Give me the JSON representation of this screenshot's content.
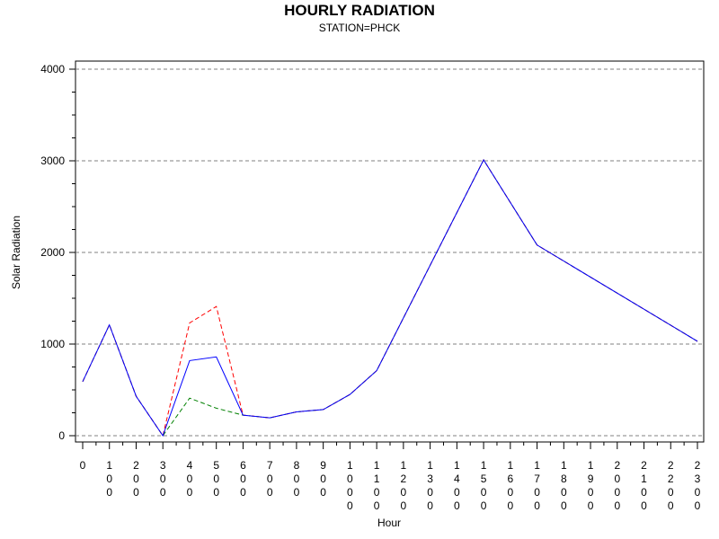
{
  "chart_data": {
    "type": "line",
    "title": "HOURLY RADIATION",
    "subtitle": "STATION=PHCK",
    "xlabel": "Hour",
    "ylabel": "Solar Radiation",
    "xlim": [
      0,
      2300
    ],
    "ylim": [
      0,
      4000
    ],
    "y_ticks": [
      0,
      1000,
      2000,
      3000,
      4000
    ],
    "y_tick_labels": [
      "0",
      "1000",
      "2000",
      "3000",
      "4000"
    ],
    "x_ticks": [
      0,
      100,
      200,
      300,
      400,
      500,
      600,
      700,
      800,
      900,
      1000,
      1100,
      1200,
      1300,
      1400,
      1500,
      1600,
      1700,
      1800,
      1900,
      2000,
      2100,
      2200,
      2300
    ],
    "x_tick_labels": [
      "0",
      "100",
      "200",
      "300",
      "400",
      "500",
      "600",
      "700",
      "800",
      "900",
      "1000",
      "1100",
      "1200",
      "1300",
      "1400",
      "1500",
      "1600",
      "1700",
      "1800",
      "1900",
      "2000",
      "2100",
      "2200",
      "2300"
    ],
    "grid": "horizontal dashed",
    "series": [
      {
        "color": "#0000ff",
        "dash": "solid",
        "x": [
          0,
          100,
          200,
          300,
          400,
          500,
          600,
          700,
          800,
          900,
          1000,
          1100,
          1500,
          1700,
          2300
        ],
        "y": [
          590,
          1210,
          430,
          0,
          820,
          860,
          225,
          195,
          260,
          285,
          450,
          710,
          3010,
          2080,
          1030
        ]
      },
      {
        "color": "#ff0000",
        "dash": "dashed",
        "x": [
          0,
          100,
          200,
          300,
          400,
          500,
          600,
          700,
          800,
          900,
          1000,
          1100,
          1500,
          1700,
          2300
        ],
        "y": [
          590,
          1210,
          430,
          0,
          1230,
          1410,
          225,
          195,
          260,
          285,
          450,
          710,
          3010,
          2080,
          1030
        ]
      },
      {
        "color": "#008000",
        "dash": "dashed",
        "x": [
          0,
          100,
          200,
          300,
          400,
          500,
          600,
          700,
          800,
          900,
          1000,
          1100,
          1500,
          1700,
          2300
        ],
        "y": [
          590,
          1210,
          430,
          0,
          410,
          300,
          225,
          195,
          260,
          285,
          450,
          710,
          3010,
          2080,
          1030
        ]
      }
    ]
  }
}
